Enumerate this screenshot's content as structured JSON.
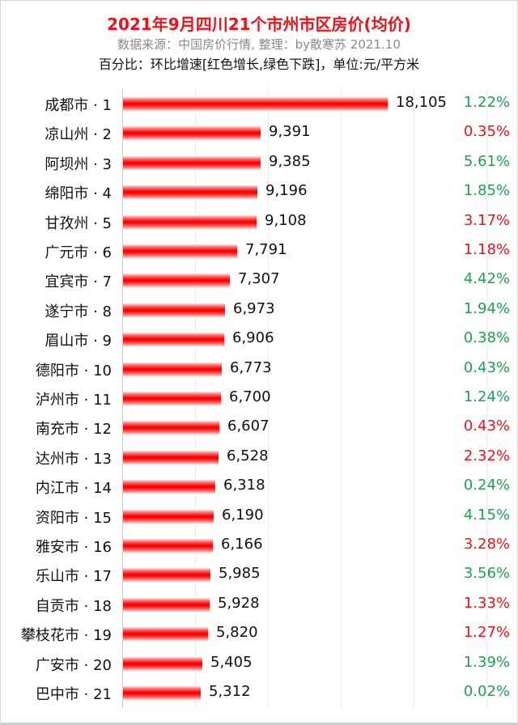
{
  "header": {
    "title": "2021年9月四川21个市州市区房价(均价)",
    "subtitle": "数据来源：中国房价行情, 整理：by散寒苏 2021.10",
    "note": "百分比：环比增速[红色增长,绿色下跌]，单位:元/平方米"
  },
  "colors": {
    "up": "#e8141c",
    "down": "#1ea152",
    "bar": "#ff0000",
    "title": "#e8141c"
  },
  "chart_data": {
    "type": "bar",
    "orientation": "horizontal",
    "title": "2021年9月四川21个市州市区房价(均价)",
    "xlabel": "",
    "ylabel": "",
    "unit": "元/平方米",
    "xlim": [
      0,
      25000
    ],
    "grid": true,
    "gridlines": [
      0,
      5000,
      10000,
      15000,
      20000,
      25000
    ],
    "categories": [
      "成都市 · 1",
      "凉山州 · 2",
      "阿坝州 · 3",
      "绵阳市 · 4",
      "甘孜州 · 5",
      "广元市 · 6",
      "宜宾市 · 7",
      "遂宁市 · 8",
      "眉山市 · 9",
      "德阳市 · 10",
      "泸州市 · 11",
      "南充市 · 12",
      "达州市 · 13",
      "内江市 · 14",
      "资阳市 · 15",
      "雅安市 · 16",
      "乐山市 · 17",
      "自贡市 · 18",
      "攀枝花市 · 19",
      "广安市 · 20",
      "巴中市 · 21"
    ],
    "values": [
      18105,
      9391,
      9385,
      9196,
      9108,
      7791,
      7307,
      6973,
      6906,
      6773,
      6700,
      6607,
      6528,
      6318,
      6190,
      6166,
      5985,
      5928,
      5820,
      5405,
      5312
    ],
    "value_labels": [
      "18,105",
      "9,391",
      "9,385",
      "9,196",
      "9,108",
      "7,791",
      "7,307",
      "6,973",
      "6,906",
      "6,773",
      "6,700",
      "6,607",
      "6,528",
      "6,318",
      "6,190",
      "6,166",
      "5,985",
      "5,928",
      "5,820",
      "5,405",
      "5,312"
    ],
    "mom_change": [
      "1.22%",
      "0.35%",
      "5.61%",
      "1.85%",
      "3.17%",
      "1.18%",
      "4.42%",
      "1.94%",
      "0.38%",
      "0.43%",
      "1.24%",
      "0.43%",
      "2.32%",
      "0.24%",
      "4.15%",
      "3.28%",
      "3.56%",
      "1.33%",
      "1.27%",
      "1.39%",
      "0.02%"
    ],
    "mom_direction": [
      "down",
      "up",
      "down",
      "down",
      "up",
      "up",
      "down",
      "down",
      "down",
      "down",
      "down",
      "up",
      "up",
      "down",
      "down",
      "up",
      "down",
      "up",
      "up",
      "down",
      "down"
    ]
  }
}
